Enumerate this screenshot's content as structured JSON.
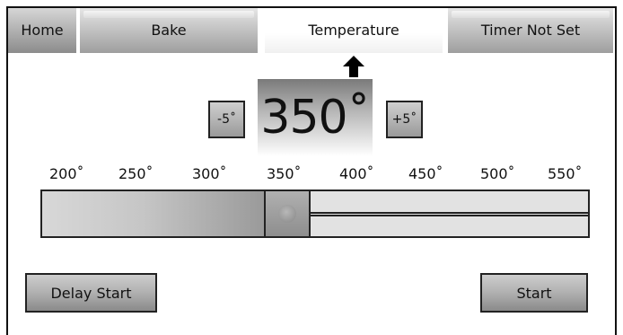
{
  "tabs": {
    "home": "Home",
    "bake": "Bake",
    "temperature": "Temperature",
    "timer": "Timer Not Set"
  },
  "temperature": {
    "value": "350˚",
    "decrement_label": "-5˚",
    "increment_label": "+5˚"
  },
  "scale": {
    "labels": [
      "200˚",
      "250˚",
      "300˚",
      "350˚",
      "400˚",
      "450˚",
      "500˚",
      "550˚"
    ],
    "selected_value": 350,
    "min": 200,
    "max": 550
  },
  "actions": {
    "delay_start": "Delay Start",
    "start": "Start"
  },
  "icons": {
    "selected_tab_indicator": "arrow-up-icon"
  }
}
